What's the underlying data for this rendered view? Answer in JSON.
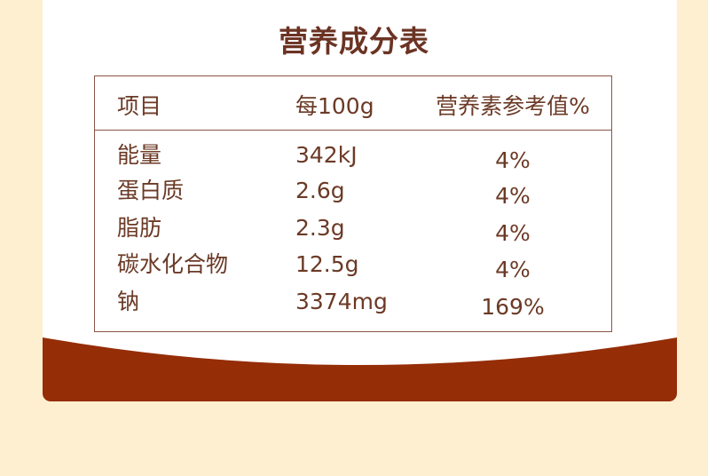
{
  "title": "营养成分表",
  "headers": [
    "项目",
    "每100g",
    "营养素参考值%"
  ],
  "rows": [
    {
      "item": "能量",
      "per100g": "342kJ",
      "nrv": "4%"
    },
    {
      "item": "蛋白质",
      "per100g": "2.6g",
      "nrv": "4%"
    },
    {
      "item": "脂肪",
      "per100g": "2.3g",
      "nrv": "4%"
    },
    {
      "item": "碳水化合物",
      "per100g": "12.5g",
      "nrv": "4%"
    },
    {
      "item": "钠",
      "per100g": "3374mg",
      "nrv": "169%"
    }
  ],
  "colors": {
    "background": "#feefd0",
    "card": "#ffffff",
    "band": "#952d07",
    "text": "#6b3a26"
  }
}
